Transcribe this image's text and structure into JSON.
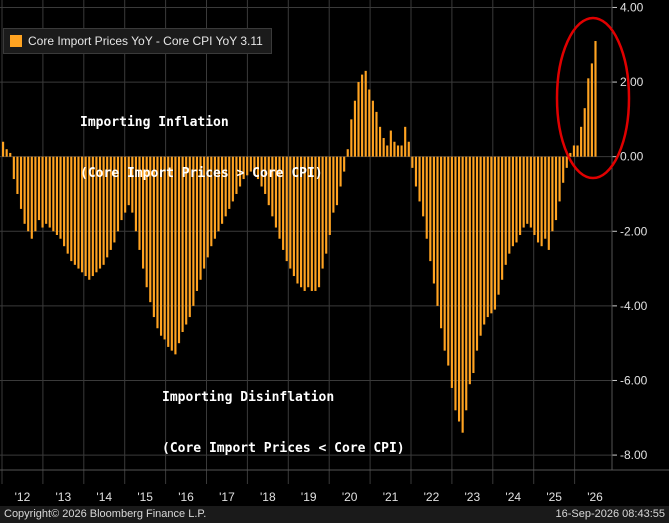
{
  "legend": {
    "label": "Core Import Prices YoY - Core CPI YoY 3.11"
  },
  "annotations": {
    "inflation_line1": "Importing Inflation",
    "inflation_line2": "(Core Import Prices > Core CPI)",
    "disinflation_line1": "Importing Disinflation",
    "disinflation_line2": "(Core Import Prices < Core CPI)"
  },
  "footer": {
    "copyright": "Copyright© 2026 Bloomberg Finance L.P.",
    "timestamp": "16-Sep-2026 08:43:55"
  },
  "colors": {
    "bar": "#ffa321",
    "background": "#000000",
    "grid": "#3a3a3a",
    "highlight_circle": "#e00000"
  },
  "chart_data": {
    "type": "bar",
    "title": "",
    "series": [
      {
        "name": "Core Import Prices YoY - Core CPI YoY",
        "last_value": 3.11
      }
    ],
    "x_tick_labels": [
      "'12",
      "'13",
      "'14",
      "'15",
      "'16",
      "'17",
      "'18",
      "'19",
      "'20",
      "'21",
      "'22",
      "'23",
      "'24",
      "'25",
      "'26"
    ],
    "y_tick_labels": [
      "4.00",
      "2.00",
      "0.00",
      "-2.00",
      "-4.00",
      "-6.00",
      "-8.00"
    ],
    "y_axis_position": "right",
    "ylim": [
      -8.4,
      4.2
    ],
    "grid": true,
    "legend_position": "top-left",
    "x_start": 2012.0,
    "values": [
      0.4,
      0.2,
      0.1,
      -0.6,
      -1.0,
      -1.4,
      -1.8,
      -2.0,
      -2.2,
      -2.0,
      -1.7,
      -1.9,
      -1.8,
      -1.9,
      -2.0,
      -2.1,
      -2.2,
      -2.4,
      -2.6,
      -2.8,
      -2.9,
      -3.0,
      -3.1,
      -3.2,
      -3.3,
      -3.2,
      -3.1,
      -3.0,
      -2.9,
      -2.7,
      -2.5,
      -2.3,
      -2.0,
      -1.7,
      -1.5,
      -1.3,
      -1.5,
      -2.0,
      -2.5,
      -3.0,
      -3.5,
      -3.9,
      -4.3,
      -4.6,
      -4.8,
      -4.9,
      -5.1,
      -5.2,
      -5.3,
      -5.0,
      -4.7,
      -4.5,
      -4.3,
      -4.0,
      -3.6,
      -3.3,
      -3.0,
      -2.7,
      -2.4,
      -2.2,
      -2.0,
      -1.8,
      -1.6,
      -1.4,
      -1.2,
      -1.0,
      -0.8,
      -0.6,
      -0.5,
      -0.4,
      -0.5,
      -0.6,
      -0.8,
      -1.0,
      -1.3,
      -1.6,
      -1.9,
      -2.2,
      -2.5,
      -2.8,
      -3.0,
      -3.2,
      -3.4,
      -3.5,
      -3.6,
      -3.5,
      -3.6,
      -3.6,
      -3.5,
      -3.0,
      -2.6,
      -2.1,
      -1.5,
      -1.3,
      -0.8,
      -0.4,
      0.2,
      1.0,
      1.5,
      2.0,
      2.2,
      2.3,
      1.8,
      1.5,
      1.2,
      0.8,
      0.5,
      0.3,
      0.7,
      0.4,
      0.3,
      0.3,
      0.8,
      0.4,
      -0.3,
      -0.8,
      -1.2,
      -1.6,
      -2.2,
      -2.8,
      -3.4,
      -4.0,
      -4.6,
      -5.2,
      -5.6,
      -6.2,
      -6.8,
      -7.1,
      -7.4,
      -6.8,
      -6.1,
      -5.8,
      -5.2,
      -4.8,
      -4.5,
      -4.3,
      -4.2,
      -4.1,
      -3.7,
      -3.3,
      -2.9,
      -2.6,
      -2.4,
      -2.3,
      -2.1,
      -1.9,
      -1.8,
      -1.9,
      -2.1,
      -2.3,
      -2.4,
      -2.2,
      -2.5,
      -2.0,
      -1.7,
      -1.2,
      -0.7,
      -0.3,
      0.1,
      0.3,
      0.3,
      0.8,
      1.3,
      2.1,
      2.5,
      3.1
    ]
  }
}
